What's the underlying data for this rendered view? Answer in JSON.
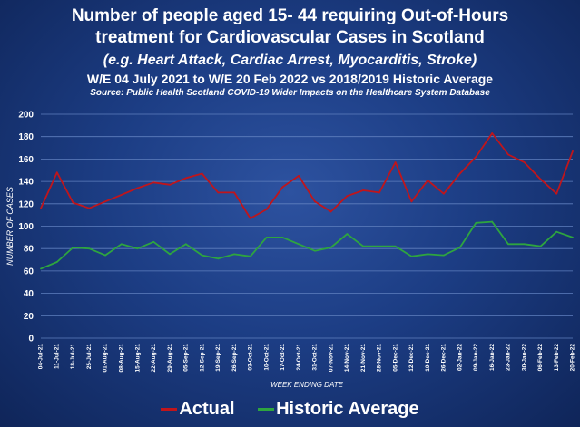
{
  "title_line1": "Number of people aged 15- 44 requiring Out-of-Hours",
  "title_line2": "treatment for Cardiovascular Cases in Scotland",
  "title_line3": "(e.g. Heart Attack, Cardiac Arrest, Myocarditis, Stroke)",
  "title_line4": "W/E 04 July 2021 to W/E 20 Feb 2022 vs 2018/2019 Historic Average",
  "title_line5": "Source: Public Health Scotland COVID-19 Wider Impacts on the Healthcare System Database",
  "colors": {
    "actual": "#c0151b",
    "historic": "#2ea53f",
    "grid": "#5f7fbe"
  },
  "chart_data": {
    "type": "line",
    "xlabel": "WEEK ENDING DATE",
    "ylabel": "NUMBER OF CASES",
    "ylim": [
      0,
      200
    ],
    "yticks": [
      0,
      20,
      40,
      60,
      80,
      100,
      120,
      140,
      160,
      180,
      200
    ],
    "grid": true,
    "legend_position": "bottom",
    "categories": [
      "04-Jul-21",
      "11-Jul-21",
      "18-Jul-21",
      "25-Jul-21",
      "01-Aug-21",
      "08-Aug-21",
      "15-Aug-21",
      "22-Aug-21",
      "29-Aug-21",
      "05-Sep-21",
      "12-Sep-21",
      "19-Sep-21",
      "26-Sep-21",
      "03-Oct-21",
      "10-Oct-21",
      "17-Oct-21",
      "24-Oct-21",
      "31-Oct-21",
      "07-Nov-21",
      "14-Nov-21",
      "21-Nov-21",
      "28-Nov-21",
      "05-Dec-21",
      "12-Dec-21",
      "19-Dec-21",
      "26-Dec-21",
      "02-Jan-22",
      "09-Jan-22",
      "16-Jan-22",
      "23-Jan-22",
      "30-Jan-22",
      "06-Feb-22",
      "13-Feb-22",
      "20-Feb-22"
    ],
    "series": [
      {
        "name": "Actual",
        "values": [
          116,
          148,
          121,
          116,
          122,
          128,
          134,
          139,
          137,
          143,
          147,
          130,
          130,
          107,
          115,
          135,
          145,
          122,
          113,
          127,
          132,
          130,
          157,
          122,
          141,
          129,
          147,
          162,
          183,
          164,
          157,
          142,
          129,
          167
        ]
      },
      {
        "name": "Historic Average",
        "values": [
          62,
          68,
          81,
          80,
          74,
          84,
          80,
          86,
          75,
          84,
          74,
          71,
          75,
          73,
          90,
          90,
          84,
          78,
          81,
          93,
          82,
          82,
          82,
          73,
          75,
          74,
          81,
          103,
          104,
          84,
          84,
          82,
          95,
          90
        ]
      }
    ]
  }
}
